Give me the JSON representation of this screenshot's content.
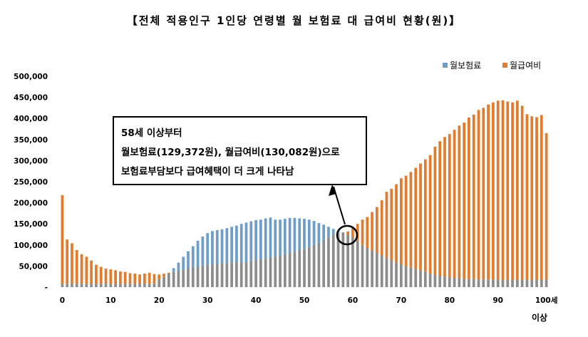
{
  "title": "【전체 적용인구 1인당 연령별 월 보험료 대 급여비 현황(원)】",
  "colors": {
    "premium": "#6F9DCA",
    "benefit": "#E27B2E",
    "overlap": "#8D8C8C"
  },
  "callout": {
    "line1": "58세 이상부터",
    "line2": "월보험료(129,372원), 월급여비(130,082원)으로",
    "line3": "보험료부담보다 급여혜택이 더 크게 나타남"
  },
  "x_tail_label": "이상",
  "chart_data": {
    "type": "bar",
    "title": "【전체 적용인구 1인당 연령별 월 보험료 대 급여비 현황(원)】",
    "x": [
      0,
      1,
      2,
      3,
      4,
      5,
      6,
      7,
      8,
      9,
      10,
      11,
      12,
      13,
      14,
      15,
      16,
      17,
      18,
      19,
      20,
      21,
      22,
      23,
      24,
      25,
      26,
      27,
      28,
      29,
      30,
      31,
      32,
      33,
      34,
      35,
      36,
      37,
      38,
      39,
      40,
      41,
      42,
      43,
      44,
      45,
      46,
      47,
      48,
      49,
      50,
      51,
      52,
      53,
      54,
      55,
      56,
      57,
      58,
      59,
      60,
      61,
      62,
      63,
      64,
      65,
      66,
      67,
      68,
      69,
      70,
      71,
      72,
      73,
      74,
      75,
      76,
      77,
      78,
      79,
      80,
      81,
      82,
      83,
      84,
      85,
      86,
      87,
      88,
      89,
      90,
      91,
      92,
      93,
      94,
      95,
      96,
      97,
      98,
      99,
      100
    ],
    "x_tick_labels": [
      {
        "x": 0,
        "label": "0"
      },
      {
        "x": 10,
        "label": "10"
      },
      {
        "x": 20,
        "label": "20"
      },
      {
        "x": 30,
        "label": "30"
      },
      {
        "x": 40,
        "label": "40"
      },
      {
        "x": 50,
        "label": "50"
      },
      {
        "x": 60,
        "label": "60"
      },
      {
        "x": 70,
        "label": "70"
      },
      {
        "x": 80,
        "label": "80"
      },
      {
        "x": 90,
        "label": "90"
      },
      {
        "x": 100,
        "label": "100세"
      }
    ],
    "ylim": [
      0,
      500000
    ],
    "y_ticks": [
      0,
      50000,
      100000,
      150000,
      200000,
      250000,
      300000,
      350000,
      400000,
      450000,
      500000
    ],
    "y_tick_labels": [
      "-",
      "50,000",
      "100,000",
      "150,000",
      "200,000",
      "250,000",
      "300,000",
      "350,000",
      "400,000",
      "450,000",
      "500,000"
    ],
    "legend_position": "top-right",
    "series": [
      {
        "name": "월보험료",
        "values": [
          8000,
          8000,
          8000,
          8000,
          8000,
          8000,
          8000,
          8000,
          8000,
          8000,
          8000,
          8000,
          8000,
          8000,
          8000,
          8000,
          8000,
          8000,
          8000,
          9000,
          18000,
          24000,
          32000,
          45000,
          58000,
          72000,
          85000,
          97000,
          110000,
          120000,
          128000,
          133000,
          135000,
          137000,
          140000,
          143000,
          146000,
          150000,
          153000,
          156000,
          159000,
          160000,
          163000,
          165000,
          160000,
          160000,
          162000,
          164000,
          164000,
          163000,
          162000,
          160000,
          157000,
          152000,
          148000,
          143000,
          138000,
          134000,
          129372,
          124000,
          118000,
          110000,
          100000,
          93000,
          87000,
          81000,
          76000,
          70000,
          64000,
          58000,
          54000,
          50000,
          46000,
          43000,
          40000,
          36000,
          32000,
          29000,
          27000,
          25000,
          23000,
          22000,
          21000,
          20000,
          19000,
          19000,
          18000,
          18000,
          18000,
          18000,
          17000,
          17000,
          17000,
          17000,
          17000,
          17000,
          17000,
          17000,
          17000,
          17000,
          17000
        ]
      },
      {
        "name": "월급여비",
        "values": [
          218000,
          113000,
          104000,
          88000,
          78000,
          72000,
          63000,
          53000,
          48000,
          44000,
          42000,
          40000,
          37000,
          36000,
          33000,
          32000,
          30000,
          32000,
          34000,
          31000,
          30000,
          32000,
          34000,
          36000,
          38000,
          41000,
          44000,
          47000,
          49000,
          51000,
          53000,
          54000,
          55000,
          56000,
          57000,
          58000,
          59000,
          58000,
          59000,
          62000,
          64000,
          66000,
          68000,
          70000,
          72000,
          75000,
          78000,
          81000,
          84000,
          87000,
          90000,
          95000,
          100000,
          106000,
          112000,
          118000,
          124000,
          128000,
          130082,
          132000,
          140000,
          150000,
          160000,
          166000,
          178000,
          190000,
          206000,
          226000,
          233000,
          244000,
          258000,
          264000,
          273000,
          283000,
          293000,
          303000,
          313000,
          333000,
          346000,
          356000,
          363000,
          373000,
          383000,
          390000,
          402000,
          409000,
          420000,
          425000,
          433000,
          438000,
          442000,
          443000,
          440000,
          438000,
          442000,
          430000,
          410000,
          405000,
          403000,
          408000,
          365000
        ]
      }
    ]
  }
}
